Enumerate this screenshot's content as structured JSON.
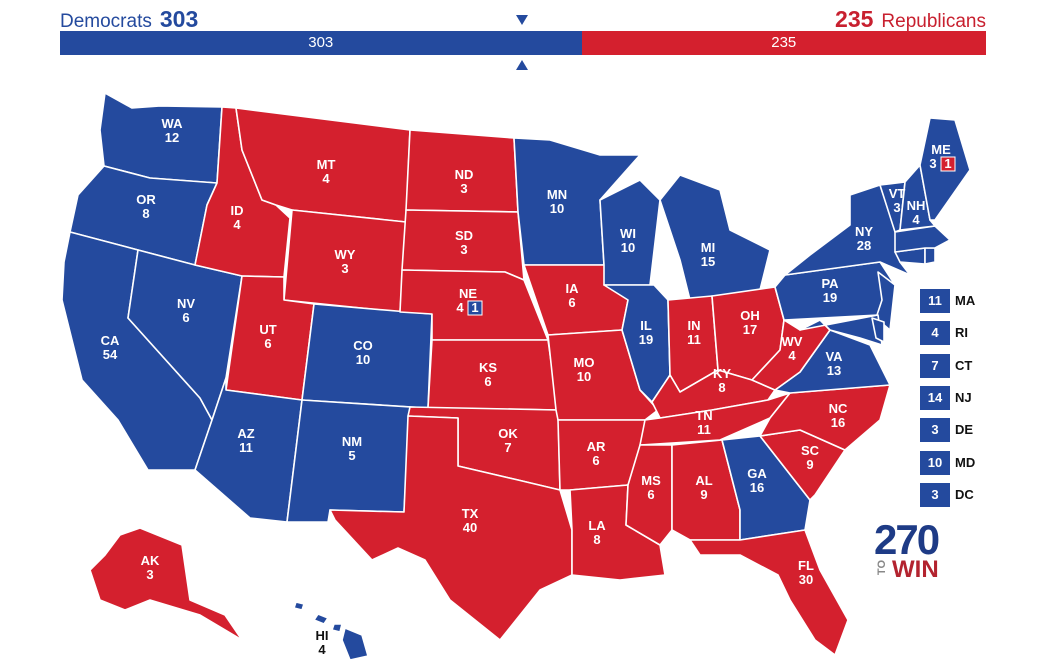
{
  "header": {
    "dem_label": "Democrats",
    "dem_total": "303",
    "rep_total": "235",
    "rep_label": "Republicans",
    "bar_dem": "303",
    "bar_rep": "235",
    "dem_fraction": 0.5632,
    "colors": {
      "dem": "#244a9e",
      "rep": "#d4202e"
    }
  },
  "states": {
    "WA": {
      "abbr": "WA",
      "ev": "12",
      "party": "D"
    },
    "OR": {
      "abbr": "OR",
      "ev": "8",
      "party": "D"
    },
    "CA": {
      "abbr": "CA",
      "ev": "54",
      "party": "D"
    },
    "NV": {
      "abbr": "NV",
      "ev": "6",
      "party": "D"
    },
    "ID": {
      "abbr": "ID",
      "ev": "4",
      "party": "R"
    },
    "MT": {
      "abbr": "MT",
      "ev": "4",
      "party": "R"
    },
    "WY": {
      "abbr": "WY",
      "ev": "3",
      "party": "R"
    },
    "UT": {
      "abbr": "UT",
      "ev": "6",
      "party": "R"
    },
    "CO": {
      "abbr": "CO",
      "ev": "10",
      "party": "D"
    },
    "AZ": {
      "abbr": "AZ",
      "ev": "11",
      "party": "D"
    },
    "NM": {
      "abbr": "NM",
      "ev": "5",
      "party": "D"
    },
    "ND": {
      "abbr": "ND",
      "ev": "3",
      "party": "R"
    },
    "SD": {
      "abbr": "SD",
      "ev": "3",
      "party": "R"
    },
    "NE": {
      "abbr": "NE",
      "ev": "4",
      "party": "R",
      "split": "1"
    },
    "KS": {
      "abbr": "KS",
      "ev": "6",
      "party": "R"
    },
    "OK": {
      "abbr": "OK",
      "ev": "7",
      "party": "R"
    },
    "TX": {
      "abbr": "TX",
      "ev": "40",
      "party": "R"
    },
    "MN": {
      "abbr": "MN",
      "ev": "10",
      "party": "D"
    },
    "IA": {
      "abbr": "IA",
      "ev": "6",
      "party": "R"
    },
    "MO": {
      "abbr": "MO",
      "ev": "10",
      "party": "R"
    },
    "AR": {
      "abbr": "AR",
      "ev": "6",
      "party": "R"
    },
    "LA": {
      "abbr": "LA",
      "ev": "8",
      "party": "R"
    },
    "WI": {
      "abbr": "WI",
      "ev": "10",
      "party": "D"
    },
    "IL": {
      "abbr": "IL",
      "ev": "19",
      "party": "D"
    },
    "MI": {
      "abbr": "MI",
      "ev": "15",
      "party": "D"
    },
    "IN": {
      "abbr": "IN",
      "ev": "11",
      "party": "R"
    },
    "OH": {
      "abbr": "OH",
      "ev": "17",
      "party": "R"
    },
    "KY": {
      "abbr": "KY",
      "ev": "8",
      "party": "R"
    },
    "TN": {
      "abbr": "TN",
      "ev": "11",
      "party": "R"
    },
    "MS": {
      "abbr": "MS",
      "ev": "6",
      "party": "R"
    },
    "AL": {
      "abbr": "AL",
      "ev": "9",
      "party": "R"
    },
    "GA": {
      "abbr": "GA",
      "ev": "16",
      "party": "D"
    },
    "FL": {
      "abbr": "FL",
      "ev": "30",
      "party": "R"
    },
    "SC": {
      "abbr": "SC",
      "ev": "9",
      "party": "R"
    },
    "NC": {
      "abbr": "NC",
      "ev": "16",
      "party": "R"
    },
    "VA": {
      "abbr": "VA",
      "ev": "13",
      "party": "D"
    },
    "WV": {
      "abbr": "WV",
      "ev": "4",
      "party": "R"
    },
    "PA": {
      "abbr": "PA",
      "ev": "19",
      "party": "D"
    },
    "NY": {
      "abbr": "NY",
      "ev": "28",
      "party": "D"
    },
    "VT": {
      "abbr": "VT",
      "ev": "3",
      "party": "D"
    },
    "NH": {
      "abbr": "NH",
      "ev": "4",
      "party": "D"
    },
    "ME": {
      "abbr": "ME",
      "ev": "3",
      "party": "D",
      "split": "1"
    },
    "AK": {
      "abbr": "AK",
      "ev": "3",
      "party": "R"
    },
    "HI": {
      "abbr": "HI",
      "ev": "4",
      "party": "D"
    }
  },
  "small_states": [
    {
      "abbr": "MA",
      "ev": "11"
    },
    {
      "abbr": "RI",
      "ev": "4"
    },
    {
      "abbr": "CT",
      "ev": "7"
    },
    {
      "abbr": "NJ",
      "ev": "14"
    },
    {
      "abbr": "DE",
      "ev": "3"
    },
    {
      "abbr": "MD",
      "ev": "10"
    },
    {
      "abbr": "DC",
      "ev": "3"
    }
  ],
  "logo": {
    "number": "270",
    "to": "TO",
    "win": "WIN"
  }
}
